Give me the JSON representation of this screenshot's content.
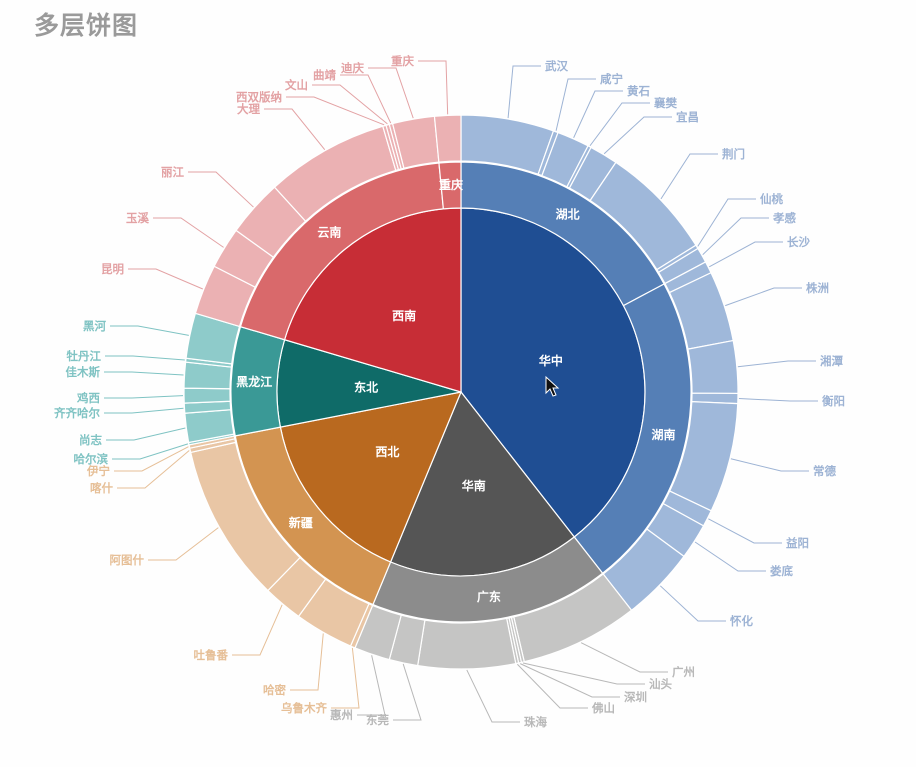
{
  "title": "多层饼图",
  "chart_data": {
    "type": "sunburst",
    "title": "多层饼图",
    "unit": "degrees of circle (estimated share)",
    "regions": [
      {
        "name": "华中",
        "colors": [
          "#1f4e93",
          "#557fb6",
          "#9fb8da"
        ],
        "label_color": "#9db3d4",
        "children": [
          {
            "name": "湖北",
            "children": [
              {
                "name": "武汉",
                "value": 19.5
              },
              {
                "name": "咸宁",
                "value": 1
              },
              {
                "name": "黄石",
                "value": 6.8
              },
              {
                "name": "襄樊",
                "value": 0.7
              },
              {
                "name": "宜昌",
                "value": 6
              },
              {
                "name": "荆门",
                "value": 24
              },
              {
                "name": "仙桃",
                "value": 0.8
              },
              {
                "name": "孝感",
                "value": 3.2
              }
            ]
          },
          {
            "name": "湖南",
            "children": [
              {
                "name": "长沙",
                "value": 2.5
              },
              {
                "name": "株洲",
                "value": 14.8
              },
              {
                "name": "湘潭",
                "value": 11
              },
              {
                "name": "衡阳",
                "value": 2.1
              },
              {
                "name": "常德",
                "value": 23
              },
              {
                "name": "益阳",
                "value": 3.5
              },
              {
                "name": "娄底",
                "value": 7.5
              },
              {
                "name": "怀化",
                "value": 15.6
              }
            ]
          }
        ]
      },
      {
        "name": "华南",
        "colors": [
          "#555555",
          "#8c8c8c",
          "#c5c5c4"
        ],
        "label_color": "#b8b8b8",
        "children": [
          {
            "name": "广东",
            "children": [
              {
                "name": "广州",
                "value": 24.8
              },
              {
                "name": "汕头",
                "value": 0.6
              },
              {
                "name": "深圳",
                "value": 0.6
              },
              {
                "name": "佛山",
                "value": 0.6
              },
              {
                "name": "珠海",
                "value": 20.4
              },
              {
                "name": "东莞",
                "value": 6
              },
              {
                "name": "惠州",
                "value": 7.5
              }
            ]
          }
        ]
      },
      {
        "name": "西北",
        "colors": [
          "#b9691f",
          "#d39451",
          "#e9c6a5"
        ],
        "label_color": "#e6bf97",
        "children": [
          {
            "name": "新疆",
            "children": [
              {
                "name": "乌鲁木齐",
                "value": 1
              },
              {
                "name": "哈密",
                "value": 12.4
              },
              {
                "name": "吐鲁番",
                "value": 8.3
              },
              {
                "name": "阿图什",
                "value": 33.2
              },
              {
                "name": "喀什",
                "value": 0.9
              },
              {
                "name": "伊宁",
                "value": 0.7
              }
            ]
          }
        ]
      },
      {
        "name": "东北",
        "colors": [
          "#0f6b68",
          "#3a9996",
          "#8ecbca"
        ],
        "label_color": "#7fc3c3",
        "children": [
          {
            "name": "黑龙江",
            "children": [
              {
                "name": "哈尔滨",
                "value": 0.5
              },
              {
                "name": "尚志",
                "value": 6.1
              },
              {
                "name": "齐齐哈尔",
                "value": 2.1
              },
              {
                "name": "鸡西",
                "value": 3.1
              },
              {
                "name": "佳木斯",
                "value": 5.4
              },
              {
                "name": "牡丹江",
                "value": 0.8
              },
              {
                "name": "黑河",
                "value": 9.5
              }
            ]
          }
        ]
      },
      {
        "name": "西南",
        "colors": [
          "#c72d36",
          "#d9696b",
          "#ebb1b3"
        ],
        "label_color": "#e3a2a4",
        "children": [
          {
            "name": "云南",
            "children": [
              {
                "name": "昆明",
                "value": 10.5
              },
              {
                "name": "玉溪",
                "value": 8.7
              },
              {
                "name": "丽江",
                "value": 12
              },
              {
                "name": "大理",
                "value": 25.9
              },
              {
                "name": "西双版纳",
                "value": 0.7
              },
              {
                "name": "文山",
                "value": 0.7
              },
              {
                "name": "曲靖",
                "value": 0.7
              },
              {
                "name": "迪庆",
                "value": 8.8
              }
            ]
          },
          {
            "name": "重庆",
            "children": [
              {
                "name": "重庆",
                "value": 5.5
              }
            ]
          }
        ]
      }
    ]
  }
}
